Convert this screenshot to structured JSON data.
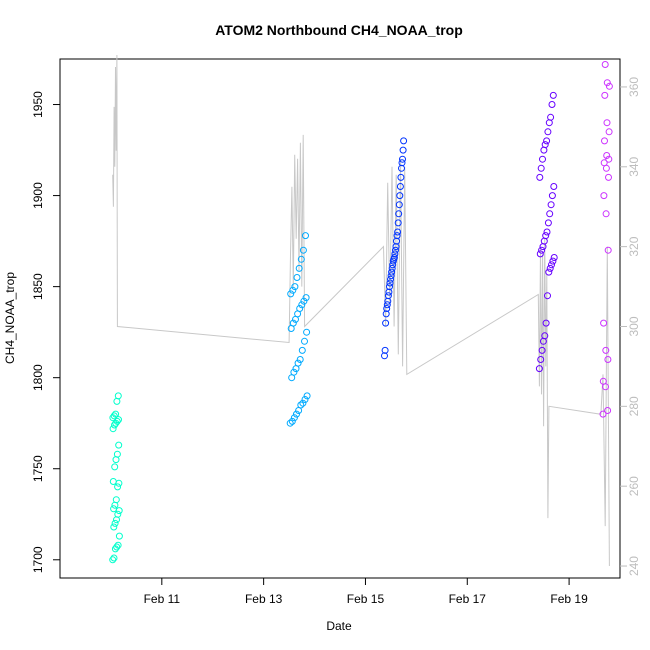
{
  "chart_data": {
    "type": "scatter",
    "title": "ATOM2 Northbound CH4_NOAA_trop",
    "xlabel": "Date",
    "ylabel": "CH4_NOAA_trop",
    "x_axis": {
      "kind": "date",
      "range": [
        "2017-02-09",
        "2017-02-20"
      ],
      "ticks": [
        "Feb 11",
        "Feb 13",
        "Feb 15",
        "Feb 17",
        "Feb 19"
      ]
    },
    "y_axis": {
      "range": [
        1690,
        1975
      ],
      "ticks": [
        1700,
        1750,
        1800,
        1850,
        1900,
        1950
      ]
    },
    "y2_axis": {
      "label": "",
      "range": [
        237,
        367
      ],
      "ticks": [
        240,
        260,
        280,
        300,
        320,
        340,
        360
      ],
      "color": "#bdbdbd"
    },
    "grid": false,
    "colors": {
      "early": "#00ffcc",
      "mid": "#00aaff",
      "blue": "#0033ff",
      "late": "#6600ff",
      "end": "#cc33ff",
      "line": "#c8c8c8"
    },
    "flights": [
      {
        "name": "flight-1",
        "x_range": [
          "2017-02-10 00:50",
          "2017-02-10 04:00"
        ],
        "color": "#00ffcc",
        "values": [
          1700,
          1701,
          1706,
          1707,
          1708,
          1713,
          1718,
          1720,
          1722,
          1725,
          1727,
          1728,
          1730,
          1733,
          1740,
          1742,
          1743,
          1751,
          1755,
          1758,
          1763,
          1772,
          1774,
          1775,
          1776,
          1777,
          1778,
          1779,
          1780,
          1787,
          1790
        ]
      },
      {
        "name": "flight-2",
        "x_range": [
          "2017-02-13 12:30",
          "2017-02-13 20:30"
        ],
        "color": "#00aaff",
        "values": [
          1775,
          1776,
          1778,
          1780,
          1782,
          1785,
          1786,
          1788,
          1790,
          1800,
          1803,
          1805,
          1808,
          1810,
          1815,
          1820,
          1825,
          1827,
          1830,
          1832,
          1835,
          1838,
          1840,
          1842,
          1844,
          1846,
          1848,
          1850,
          1855,
          1860,
          1865,
          1870,
          1878
        ]
      },
      {
        "name": "flight-3",
        "x_range": [
          "2017-02-15 09:00",
          "2017-02-15 18:00"
        ],
        "color": "#0033ff",
        "values": [
          1812,
          1815,
          1830,
          1835,
          1838,
          1840,
          1842,
          1845,
          1847,
          1850,
          1852,
          1854,
          1856,
          1858,
          1860,
          1862,
          1864,
          1865,
          1866,
          1868,
          1870,
          1872,
          1875,
          1878,
          1880,
          1885,
          1890,
          1895,
          1900,
          1905,
          1910,
          1915,
          1918,
          1920,
          1925,
          1930
        ]
      },
      {
        "name": "flight-4",
        "x_range": [
          "2017-02-18 10:00",
          "2017-02-18 17:00"
        ],
        "color": "#6600ff",
        "values": [
          1805,
          1810,
          1815,
          1820,
          1823,
          1830,
          1845,
          1858,
          1860,
          1862,
          1864,
          1866,
          1868,
          1870,
          1872,
          1875,
          1878,
          1880,
          1885,
          1890,
          1895,
          1900,
          1905,
          1910,
          1915,
          1920,
          1925,
          1928,
          1930,
          1935,
          1940,
          1943,
          1950,
          1955
        ]
      },
      {
        "name": "flight-5",
        "x_range": [
          "2017-02-19 16:00",
          "2017-02-19 19:00"
        ],
        "color": "#cc33ff",
        "values": [
          1780,
          1782,
          1795,
          1798,
          1810,
          1815,
          1830,
          1870,
          1890,
          1900,
          1910,
          1915,
          1918,
          1920,
          1922,
          1930,
          1935,
          1940,
          1955,
          1960,
          1962,
          1972
        ]
      }
    ],
    "line_series": {
      "name": "",
      "axis": "right",
      "color": "#c8c8c8",
      "points": [
        [
          "2017-02-10 00:50",
          338
        ],
        [
          "2017-02-10 01:10",
          330
        ],
        [
          "2017-02-10 01:30",
          355
        ],
        [
          "2017-02-10 01:50",
          340
        ],
        [
          "2017-02-10 02:10",
          365
        ],
        [
          "2017-02-10 02:30",
          344
        ],
        [
          "2017-02-10 02:50",
          368
        ],
        [
          "2017-02-10 03:05",
          300
        ],
        [
          "2017-02-13 12:00",
          296
        ],
        [
          "2017-02-13 12:40",
          318
        ],
        [
          "2017-02-13 13:20",
          335
        ],
        [
          "2017-02-13 14:00",
          310
        ],
        [
          "2017-02-13 14:40",
          343
        ],
        [
          "2017-02-13 15:20",
          322
        ],
        [
          "2017-02-13 16:00",
          342
        ],
        [
          "2017-02-13 16:40",
          314
        ],
        [
          "2017-02-13 17:20",
          346
        ],
        [
          "2017-02-13 18:00",
          310
        ],
        [
          "2017-02-13 18:40",
          348
        ],
        [
          "2017-02-13 19:20",
          300
        ],
        [
          "2017-02-15 08:30",
          320
        ],
        [
          "2017-02-15 09:30",
          300
        ],
        [
          "2017-02-15 10:30",
          336
        ],
        [
          "2017-02-15 11:30",
          305
        ],
        [
          "2017-02-15 12:30",
          340
        ],
        [
          "2017-02-15 13:30",
          300
        ],
        [
          "2017-02-15 14:30",
          338
        ],
        [
          "2017-02-15 15:30",
          293
        ],
        [
          "2017-02-15 16:30",
          342
        ],
        [
          "2017-02-15 17:30",
          290
        ],
        [
          "2017-02-15 18:30",
          340
        ],
        [
          "2017-02-15 19:30",
          288
        ],
        [
          "2017-02-18 09:30",
          308
        ],
        [
          "2017-02-18 10:00",
          285
        ],
        [
          "2017-02-18 10:30",
          320
        ],
        [
          "2017-02-18 11:00",
          283
        ],
        [
          "2017-02-18 11:30",
          318
        ],
        [
          "2017-02-18 12:00",
          275
        ],
        [
          "2017-02-18 12:30",
          322
        ],
        [
          "2017-02-18 13:00",
          290
        ],
        [
          "2017-02-18 13:30",
          313
        ],
        [
          "2017-02-18 14:00",
          252
        ],
        [
          "2017-02-18 14:30",
          280
        ],
        [
          "2017-02-19 15:00",
          278
        ],
        [
          "2017-02-19 16:00",
          288
        ],
        [
          "2017-02-19 17:00",
          250
        ],
        [
          "2017-02-19 18:00",
          320
        ],
        [
          "2017-02-19 19:00",
          240
        ]
      ]
    }
  }
}
